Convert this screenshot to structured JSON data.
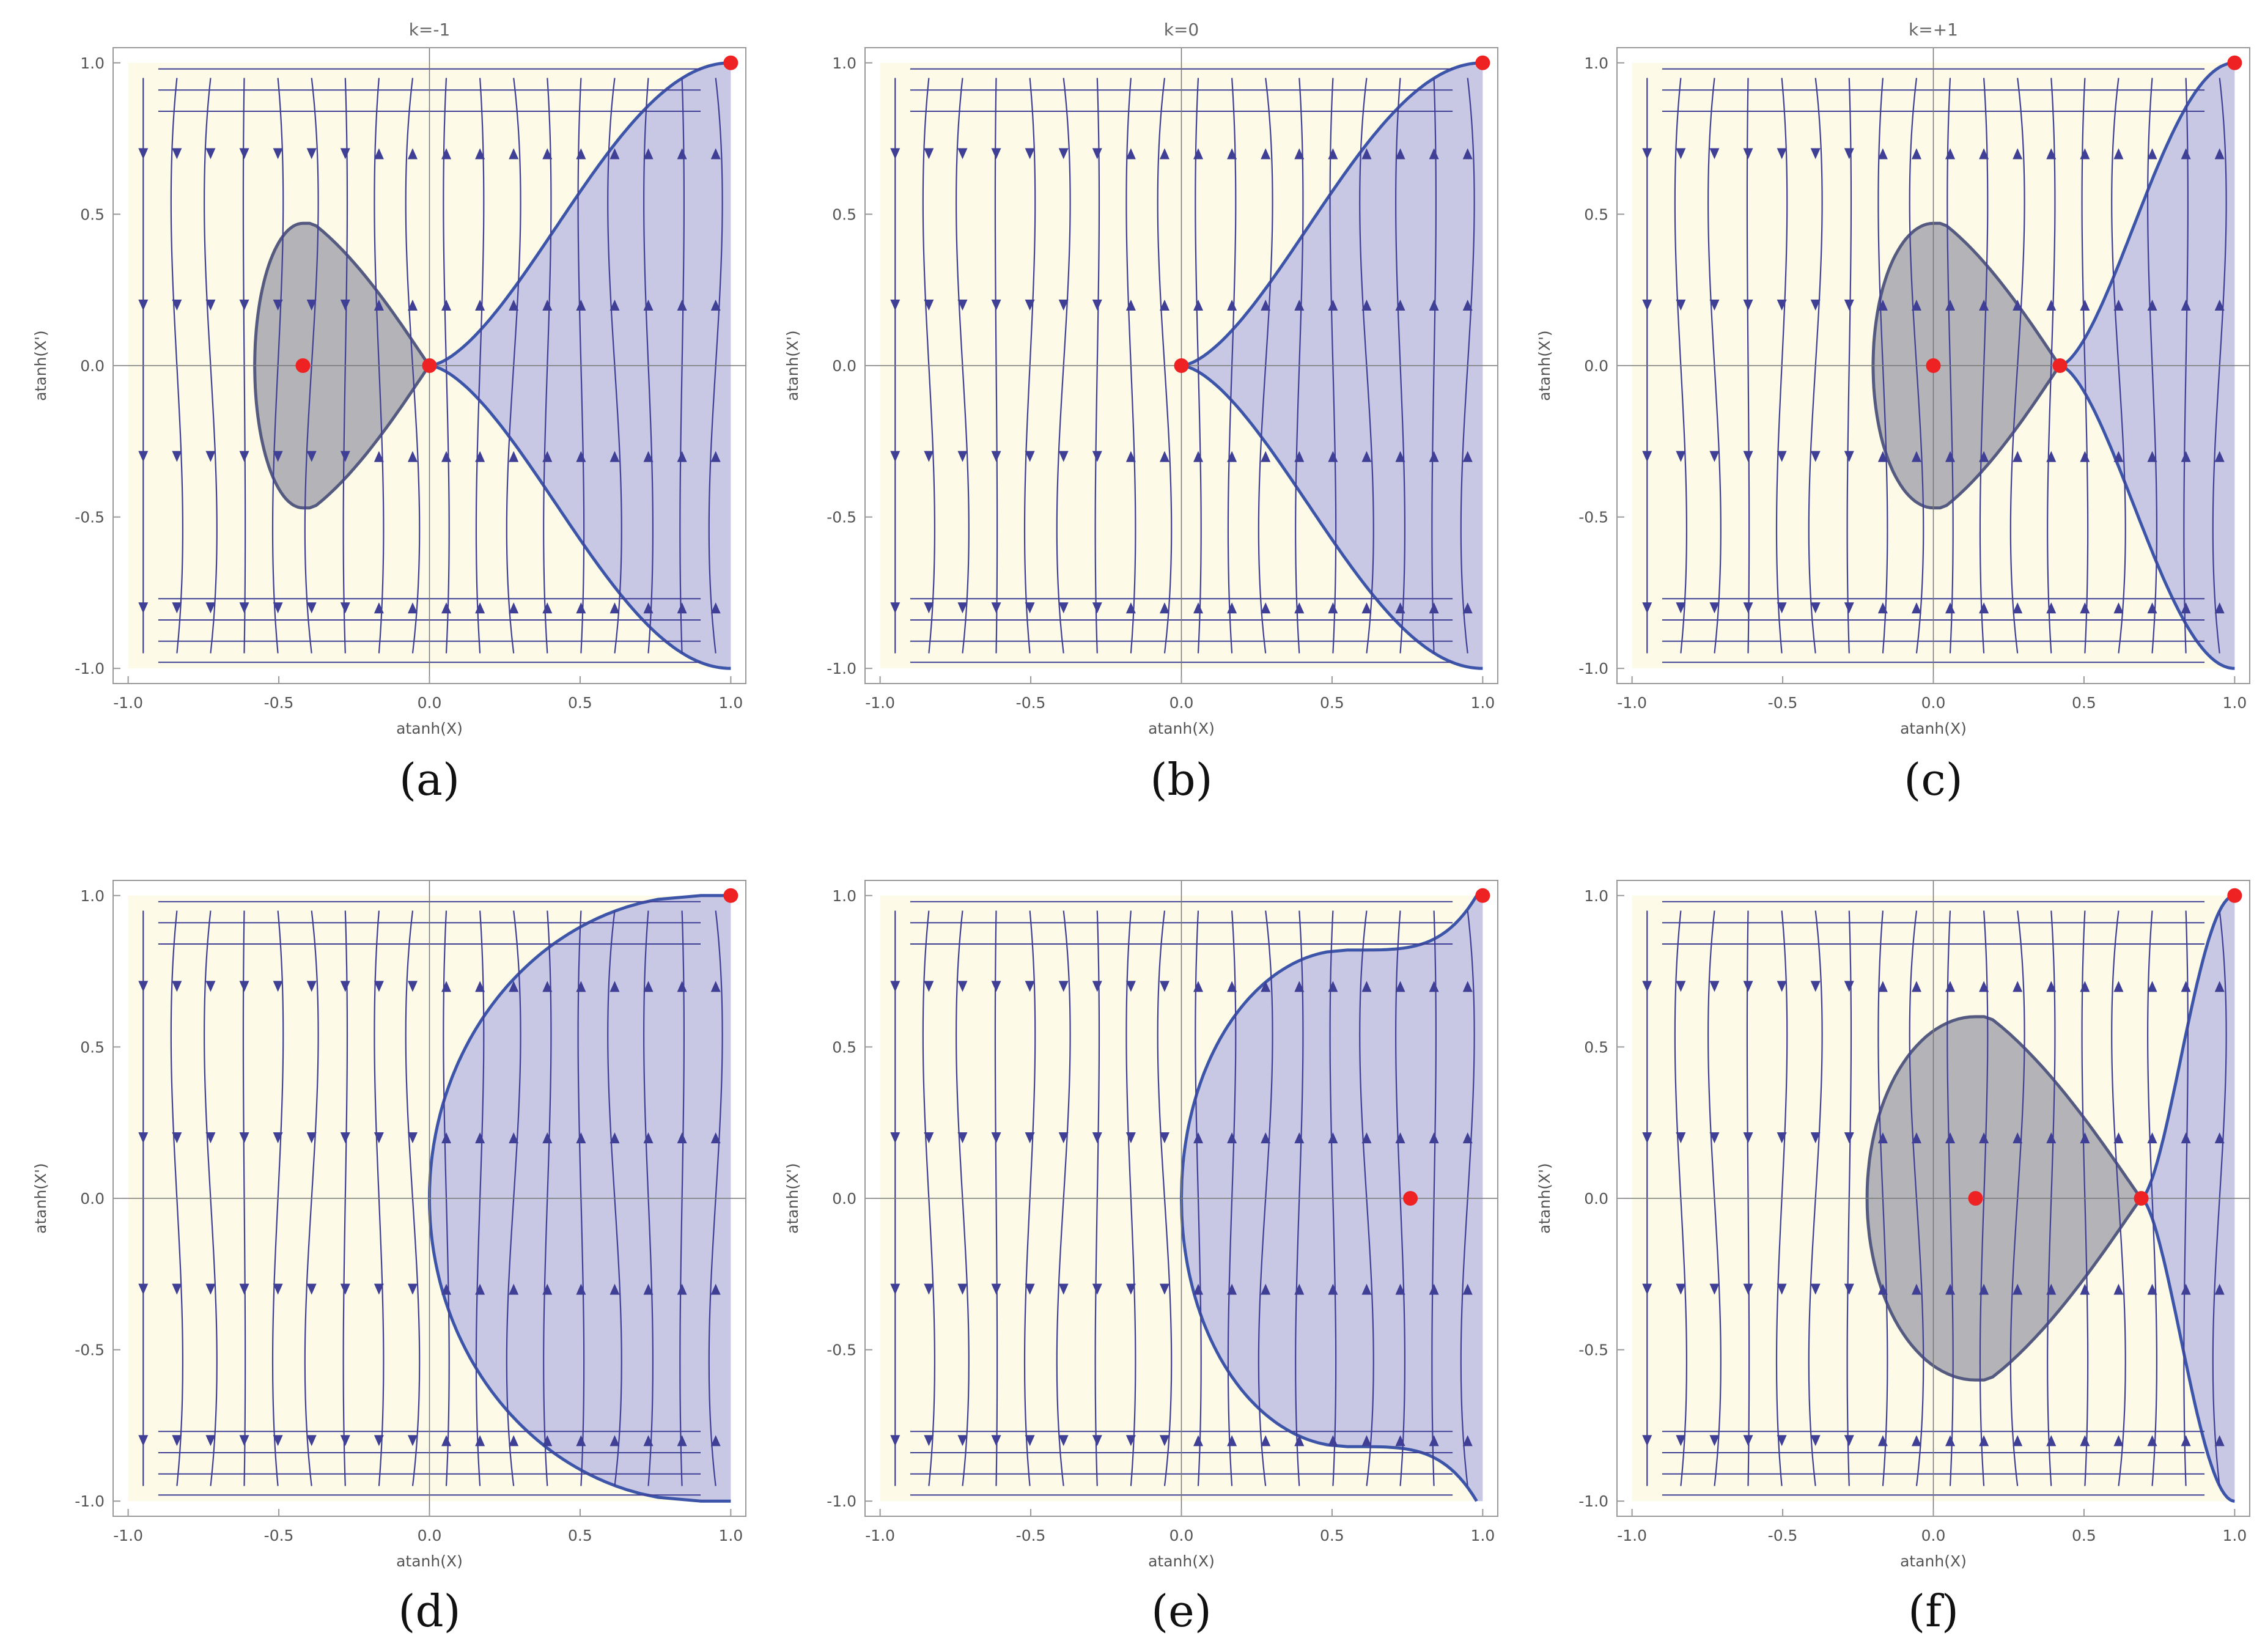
{
  "chart_data": [
    {
      "panel_label": "(a)",
      "title": "k=-1",
      "type": "streamplot",
      "xlabel": "atanh(X)",
      "ylabel": "atanh(X')",
      "xlim": [
        -1.05,
        1.05
      ],
      "ylim": [
        -1.05,
        1.05
      ],
      "x_ticks": [
        "-1.0",
        "-0.5",
        "0.0",
        "0.5",
        "1.0"
      ],
      "y_ticks": [
        "-1.0",
        "-0.5",
        "0.0",
        "0.5",
        "1.0"
      ],
      "fixed_points": [
        [
          -0.42,
          0.0
        ],
        [
          0.0,
          0.0
        ],
        [
          1.0,
          1.0
        ]
      ],
      "regions": [
        "grey closed orbit around (-0.42, 0)",
        "blue region right of separatrix through (0, 0)"
      ],
      "colors": {
        "background": "#fdfbe8",
        "stream": "#3f3f95",
        "blue_fill": "#c8c8e4",
        "grey_fill": "#b3b3b8",
        "separatrix": "#3d55a8",
        "point": "#ee2222"
      }
    },
    {
      "panel_label": "(b)",
      "title": "k=0",
      "type": "streamplot",
      "xlabel": "atanh(X)",
      "ylabel": "atanh(X')",
      "xlim": [
        -1.05,
        1.05
      ],
      "ylim": [
        -1.05,
        1.05
      ],
      "x_ticks": [
        "-1.0",
        "-0.5",
        "0.0",
        "0.5",
        "1.0"
      ],
      "y_ticks": [
        "-1.0",
        "-0.5",
        "0.0",
        "0.5",
        "1.0"
      ],
      "fixed_points": [
        [
          0.0,
          0.0
        ],
        [
          1.0,
          1.0
        ]
      ],
      "regions": [
        "blue cusp region right of (0, 0)"
      ],
      "colors": {
        "background": "#fdfbe8",
        "stream": "#3f3f95",
        "blue_fill": "#c8c8e4",
        "separatrix": "#3d55a8",
        "point": "#ee2222"
      }
    },
    {
      "panel_label": "(c)",
      "title": "k=+1",
      "type": "streamplot",
      "xlabel": "atanh(X)",
      "ylabel": "atanh(X')",
      "xlim": [
        -1.05,
        1.05
      ],
      "ylim": [
        -1.05,
        1.05
      ],
      "x_ticks": [
        "-1.0",
        "-0.5",
        "0.0",
        "0.5",
        "1.0"
      ],
      "y_ticks": [
        "-1.0",
        "-0.5",
        "0.0",
        "0.5",
        "1.0"
      ],
      "fixed_points": [
        [
          0.0,
          0.0
        ],
        [
          0.42,
          0.0
        ],
        [
          1.0,
          1.0
        ]
      ],
      "regions": [
        "grey closed orbit around (0, 0)",
        "blue region right of saddle (0.42, 0)"
      ],
      "colors": {
        "background": "#fdfbe8",
        "stream": "#3f3f95",
        "blue_fill": "#c8c8e4",
        "grey_fill": "#b3b3b8",
        "separatrix": "#3d55a8",
        "point": "#ee2222"
      }
    },
    {
      "panel_label": "(d)",
      "title": "",
      "type": "streamplot",
      "xlabel": "atanh(X)",
      "ylabel": "atanh(X')",
      "xlim": [
        -1.05,
        1.05
      ],
      "ylim": [
        -1.05,
        1.05
      ],
      "x_ticks": [
        "-1.0",
        "-0.5",
        "0.0",
        "0.5",
        "1.0"
      ],
      "y_ticks": [
        "-1.0",
        "-0.5",
        "0.0",
        "0.5",
        "1.0"
      ],
      "fixed_points": [
        [
          1.0,
          1.0
        ]
      ],
      "regions": [
        "blue region right of curve through (0, 0)"
      ],
      "colors": {
        "background": "#fdfbe8",
        "stream": "#3f3f95",
        "blue_fill": "#c8c8e4",
        "separatrix": "#3d55a8",
        "point": "#ee2222"
      }
    },
    {
      "panel_label": "(e)",
      "title": "",
      "type": "streamplot",
      "xlabel": "atanh(X)",
      "ylabel": "atanh(X')",
      "xlim": [
        -1.05,
        1.05
      ],
      "ylim": [
        -1.05,
        1.05
      ],
      "x_ticks": [
        "-1.0",
        "-0.5",
        "0.0",
        "0.5",
        "1.0"
      ],
      "y_ticks": [
        "-1.0",
        "-0.5",
        "0.0",
        "0.5",
        "1.0"
      ],
      "fixed_points": [
        [
          0.76,
          0.0
        ],
        [
          1.0,
          1.0
        ]
      ],
      "regions": [
        "blue region right of curve through (0, 0)"
      ],
      "colors": {
        "background": "#fdfbe8",
        "stream": "#3f3f95",
        "blue_fill": "#c8c8e4",
        "separatrix": "#3d55a8",
        "point": "#ee2222"
      }
    },
    {
      "panel_label": "(f)",
      "title": "",
      "type": "streamplot",
      "xlabel": "atanh(X)",
      "ylabel": "atanh(X')",
      "xlim": [
        -1.05,
        1.05
      ],
      "ylim": [
        -1.05,
        1.05
      ],
      "x_ticks": [
        "-1.0",
        "-0.5",
        "0.0",
        "0.5",
        "1.0"
      ],
      "y_ticks": [
        "-1.0",
        "-0.5",
        "0.0",
        "0.5",
        "1.0"
      ],
      "fixed_points": [
        [
          0.14,
          0.0
        ],
        [
          0.69,
          0.0
        ],
        [
          1.0,
          1.0
        ]
      ],
      "regions": [
        "grey closed orbit around (0.14, 0)",
        "blue region right of saddle (0.69, 0)"
      ],
      "colors": {
        "background": "#fdfbe8",
        "stream": "#3f3f95",
        "blue_fill": "#c8c8e4",
        "grey_fill": "#b3b3b8",
        "separatrix": "#3d55a8",
        "point": "#ee2222"
      }
    }
  ]
}
